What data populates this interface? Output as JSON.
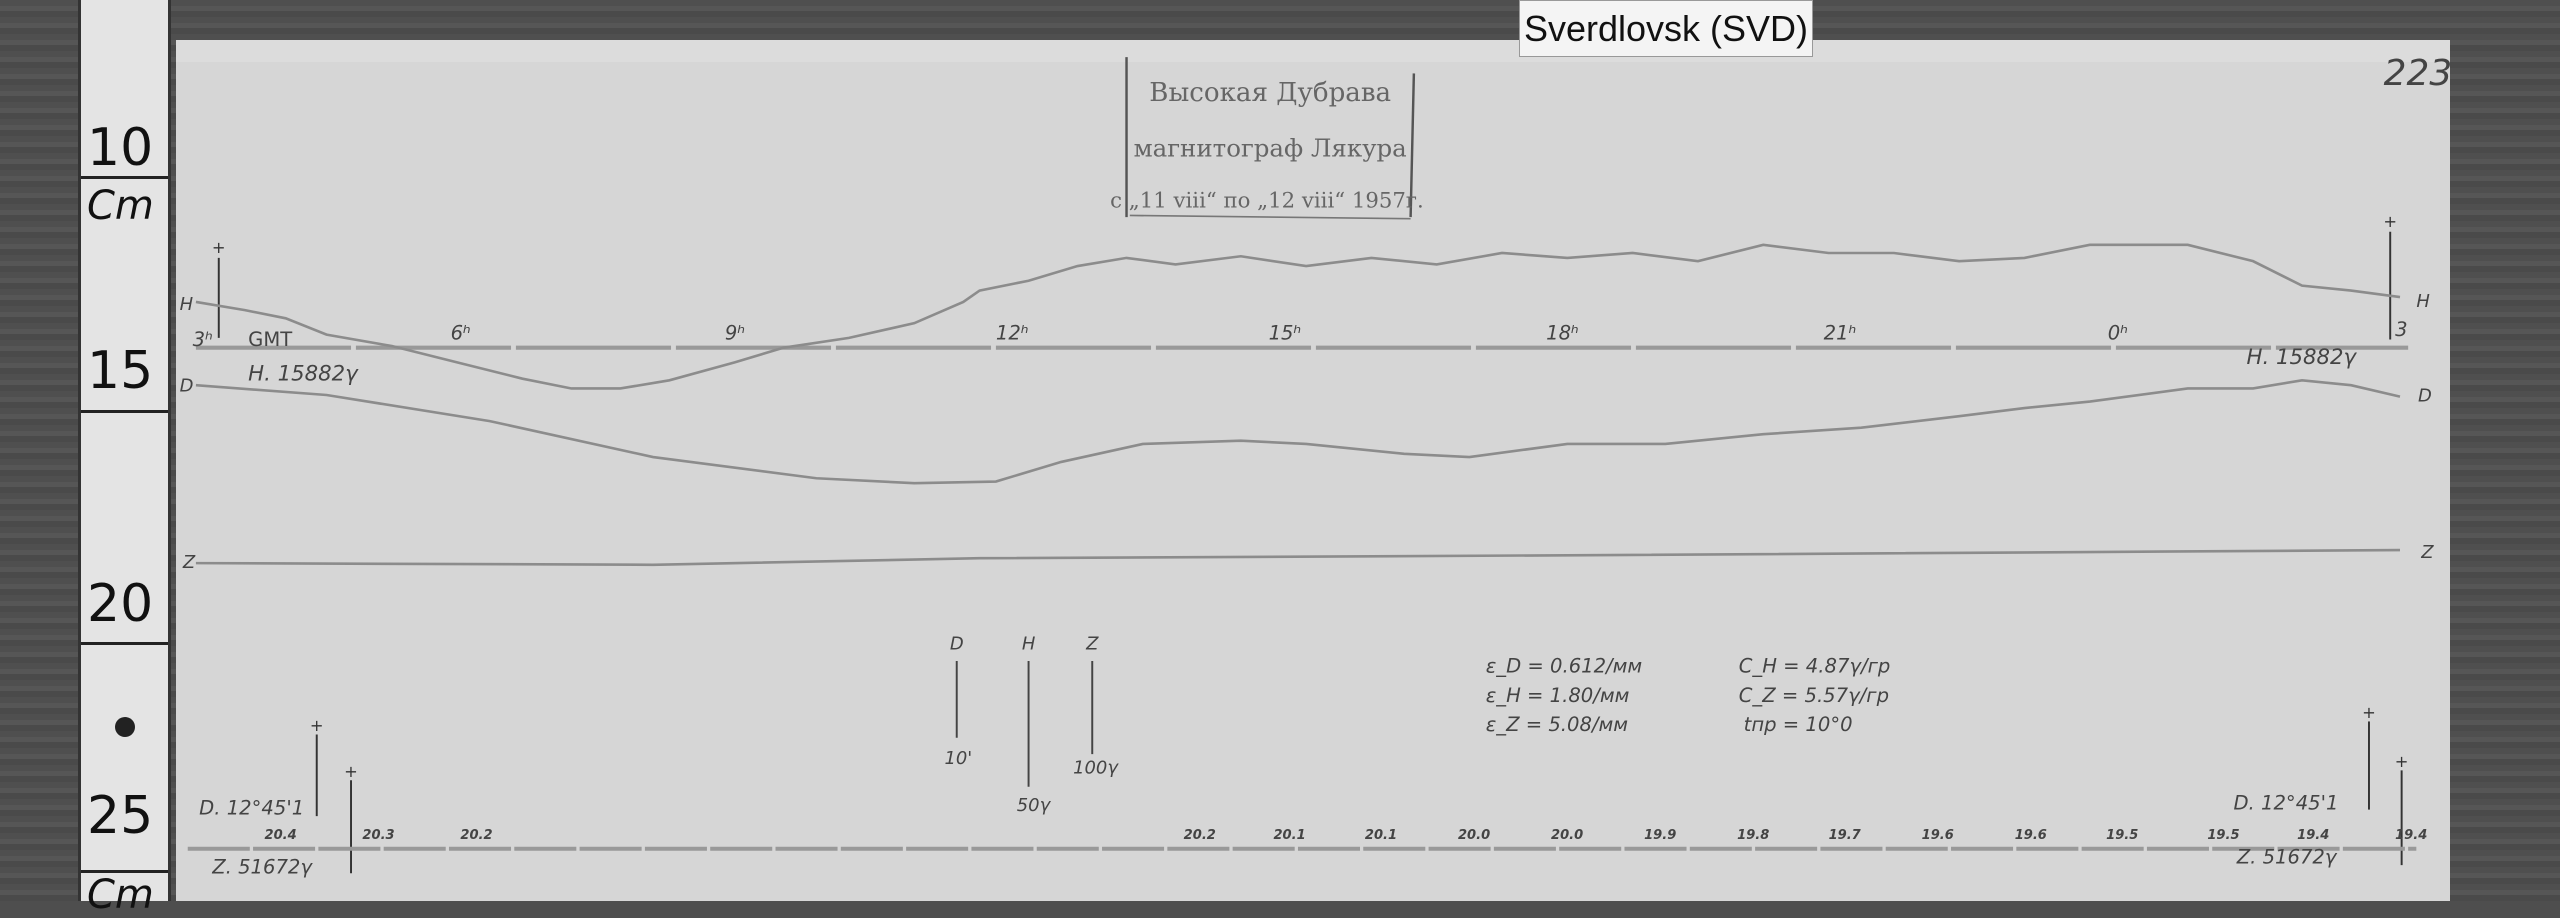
{
  "station_tag": "Sverdlovsk (SVD)",
  "page_number": "223",
  "ruler": {
    "labels": [
      "10",
      "Cm",
      "15",
      "20",
      "25",
      "Cm"
    ]
  },
  "stamp": {
    "line1": "Высокая Дубрава",
    "line2": "магнитограф Лякура",
    "line3": "с „11 viii“ по „12 viii“ 1957г."
  },
  "traces": {
    "h": "H",
    "d": "D",
    "z": "Z"
  },
  "time_axis": {
    "zone": "GMT",
    "hours": [
      "3ʰ",
      "6ʰ",
      "9ʰ",
      "12ʰ",
      "15ʰ",
      "18ʰ",
      "21ʰ",
      "0ʰ",
      "3"
    ]
  },
  "baselines": {
    "h_left": "H. 15882γ",
    "h_right": "H. 15882γ",
    "d_left": "D. 12°45'1",
    "d_right": "D. 12°45'1",
    "z_left": "Z. 51672γ",
    "z_right": "Z. 51672γ"
  },
  "scale_bars": [
    {
      "component": "D",
      "value": "10'"
    },
    {
      "component": "H",
      "value": "50γ"
    },
    {
      "component": "Z",
      "value": "100γ"
    }
  ],
  "constants": {
    "eps_d": "ε_D = 0.612/мм",
    "eps_h": "ε_H = 1.80/мм",
    "eps_z": "ε_Z = 5.08/мм",
    "c_h": "C_H = 4.87γ/гр",
    "c_z": "C_Z = 5.57γ/гр",
    "t_pr": "tпр = 10°0"
  },
  "temperature_marks": [
    "20.4",
    "20.3",
    "20.2",
    "20.2",
    "20.1",
    "20.1",
    "20.0",
    "20.0",
    "19.9",
    "19.8",
    "19.7",
    "19.6",
    "19.6",
    "19.5",
    "19.5",
    "19.4",
    "19.4"
  ],
  "colors": {
    "paper": "#d6d6d6",
    "trace": "#8a8a8a",
    "ink": "#333333"
  }
}
